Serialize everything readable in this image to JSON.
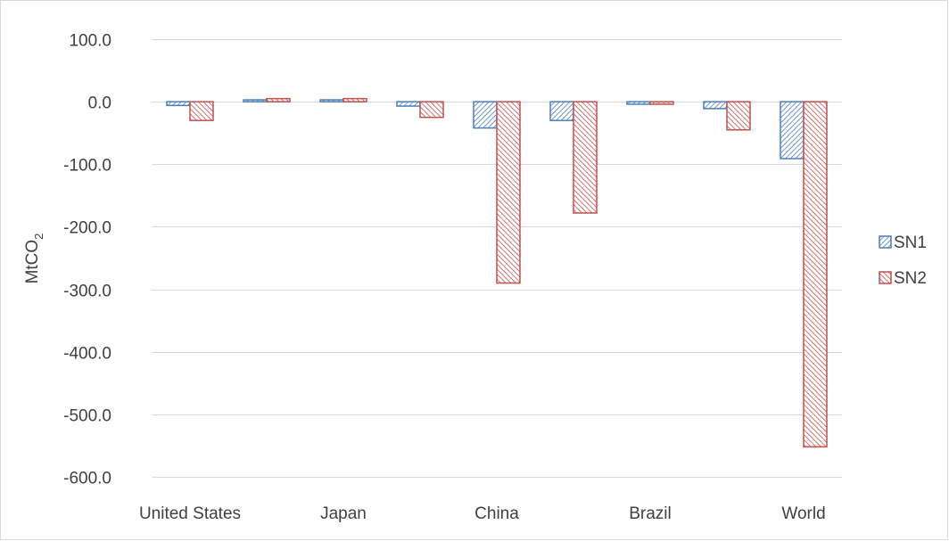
{
  "chart_data": {
    "type": "bar",
    "categories": [
      "United States",
      "",
      "Japan",
      "",
      "China",
      "",
      "Brazil",
      "",
      "World"
    ],
    "series": [
      {
        "name": "SN1",
        "values": [
          -6,
          3,
          3,
          -7,
          -42,
          -30,
          -4,
          -11,
          -91
        ],
        "color": "#4a7ebb",
        "pattern": "diagonal-hatch"
      },
      {
        "name": "SN2",
        "values": [
          -30,
          5,
          5,
          -25,
          -290,
          -178,
          -4,
          -45,
          -552
        ],
        "color": "#c0504d",
        "pattern": "diagonal-hatch"
      }
    ],
    "ylabel_main": "MtCO",
    "ylabel_sub": "2",
    "ylim": [
      -600,
      100
    ],
    "yticks": [
      100,
      0,
      -100,
      -200,
      -300,
      -400,
      -500,
      -600
    ],
    "ytick_labels": [
      "100.0",
      "0.0",
      "-100.0",
      "-200.0",
      "-300.0",
      "-400.0",
      "-500.0",
      "-600.0"
    ],
    "grid": true,
    "legend": "right"
  }
}
